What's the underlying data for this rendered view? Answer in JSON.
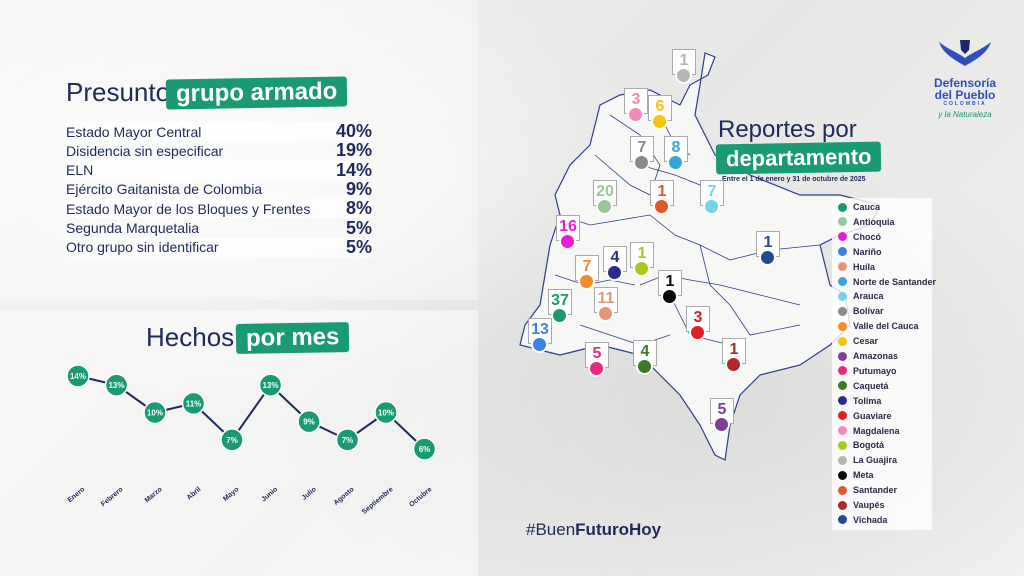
{
  "armed_group": {
    "title_plain": "Presunto",
    "title_tag": "grupo armado",
    "rows": [
      {
        "label": "Estado Mayor Central",
        "pct": "40%"
      },
      {
        "label": "Disidencia sin especificar",
        "pct": "19%"
      },
      {
        "label": "ELN",
        "pct": "14%"
      },
      {
        "label": "Ejército Gaitanista de Colombia",
        "pct": "9%"
      },
      {
        "label": "Estado Mayor de los Bloques y Frentes",
        "pct": "8%"
      },
      {
        "label": "Segunda Marquetalia",
        "pct": "5%"
      },
      {
        "label": "Otro grupo sin identificar",
        "pct": "5%"
      }
    ]
  },
  "monthly": {
    "title_plain": "Hechos",
    "title_tag": "por mes"
  },
  "chart_data": {
    "type": "line",
    "categories": [
      "Enero",
      "Febrero",
      "Marzo",
      "Abril",
      "Mayo",
      "Junio",
      "Julio",
      "Agosto",
      "Septiembre",
      "Octubre"
    ],
    "values": [
      14,
      13,
      10,
      11,
      7,
      13,
      9,
      7,
      10,
      6
    ],
    "labels": [
      "14%",
      "13%",
      "10%",
      "11%",
      "7%",
      "13%",
      "9%",
      "7%",
      "10%",
      "6%"
    ],
    "color": "#1a9a73",
    "line_color": "#1f2a5a"
  },
  "reports": {
    "title_plain": "Reportes por",
    "title_tag": "departamento",
    "subtitle": "Entre el 1 de enero y 31 de octubre de 2025"
  },
  "legend": [
    {
      "name": "Cauca",
      "color": "#1a9a73"
    },
    {
      "name": "Antioquia",
      "color": "#9bc49a"
    },
    {
      "name": "Chocó",
      "color": "#e61fd6"
    },
    {
      "name": "Nariño",
      "color": "#3b82e6"
    },
    {
      "name": "Huila",
      "color": "#e59578"
    },
    {
      "name": "Norte de Santander",
      "color": "#38a4dc"
    },
    {
      "name": "Arauca",
      "color": "#72d3ea"
    },
    {
      "name": "Bolívar",
      "color": "#8a8a8a"
    },
    {
      "name": "Valle del Cauca",
      "color": "#f28c28"
    },
    {
      "name": "Cesar",
      "color": "#f6c40c"
    },
    {
      "name": "Amazonas",
      "color": "#7b3f98"
    },
    {
      "name": "Putumayo",
      "color": "#e8287a"
    },
    {
      "name": "Caquetá",
      "color": "#3a7a2a"
    },
    {
      "name": "Tolima",
      "color": "#2b2d8c"
    },
    {
      "name": "Guaviare",
      "color": "#e11d1d"
    },
    {
      "name": "Magdalena",
      "color": "#f48bb7"
    },
    {
      "name": "Bogotá",
      "color": "#a8c81e"
    },
    {
      "name": "La Guajira",
      "color": "#b5b5b5"
    },
    {
      "name": "Meta",
      "color": "#0a0a0a"
    },
    {
      "name": "Santander",
      "color": "#e0572a"
    },
    {
      "name": "Vaupés",
      "color": "#b2282a"
    },
    {
      "name": "Vichada",
      "color": "#1c4c94"
    }
  ],
  "markers": [
    {
      "dept": "La Guajira",
      "value": "1",
      "color": "#b5b5b5"
    },
    {
      "dept": "Magdalena",
      "value": "3",
      "color": "#f48bb7"
    },
    {
      "dept": "Cesar",
      "value": "6",
      "color": "#f6c40c"
    },
    {
      "dept": "Bolívar",
      "value": "7",
      "color": "#8a8a8a"
    },
    {
      "dept": "Norte de Santander",
      "value": "8",
      "color": "#38a4dc"
    },
    {
      "dept": "Antioquia",
      "value": "20",
      "color": "#9bc49a"
    },
    {
      "dept": "Santander",
      "value": "1",
      "color": "#e0572a"
    },
    {
      "dept": "Arauca",
      "value": "7",
      "color": "#72d3ea"
    },
    {
      "dept": "Chocó",
      "value": "16",
      "color": "#e61fd6"
    },
    {
      "dept": "Vichada",
      "value": "1",
      "color": "#1c4c94"
    },
    {
      "dept": "Bogotá",
      "value": "1",
      "color": "#a8c81e"
    },
    {
      "dept": "Tolima",
      "value": "4",
      "color": "#2b2d8c"
    },
    {
      "dept": "Valle del Cauca",
      "value": "7",
      "color": "#f28c28"
    },
    {
      "dept": "Meta",
      "value": "1",
      "color": "#0a0a0a"
    },
    {
      "dept": "Cauca",
      "value": "37",
      "color": "#1a9a73"
    },
    {
      "dept": "Huila",
      "value": "11",
      "color": "#e59578"
    },
    {
      "dept": "Guaviare",
      "value": "3",
      "color": "#e11d1d"
    },
    {
      "dept": "Nariño",
      "value": "13",
      "color": "#3b82e6"
    },
    {
      "dept": "Putumayo",
      "value": "5",
      "color": "#e8287a"
    },
    {
      "dept": "Caquetá",
      "value": "4",
      "color": "#3a7a2a"
    },
    {
      "dept": "Vaupés",
      "value": "1",
      "color": "#b2282a"
    },
    {
      "dept": "Amazonas",
      "value": "5",
      "color": "#7b3f98"
    }
  ],
  "logo": {
    "line1": "Defensoría",
    "line2": "del Pueblo",
    "line3": "COLOMBIA",
    "tagline": "y la Naturaleza"
  },
  "hashtag": {
    "pre": "#Buen",
    "bold": "FuturoHoy"
  }
}
